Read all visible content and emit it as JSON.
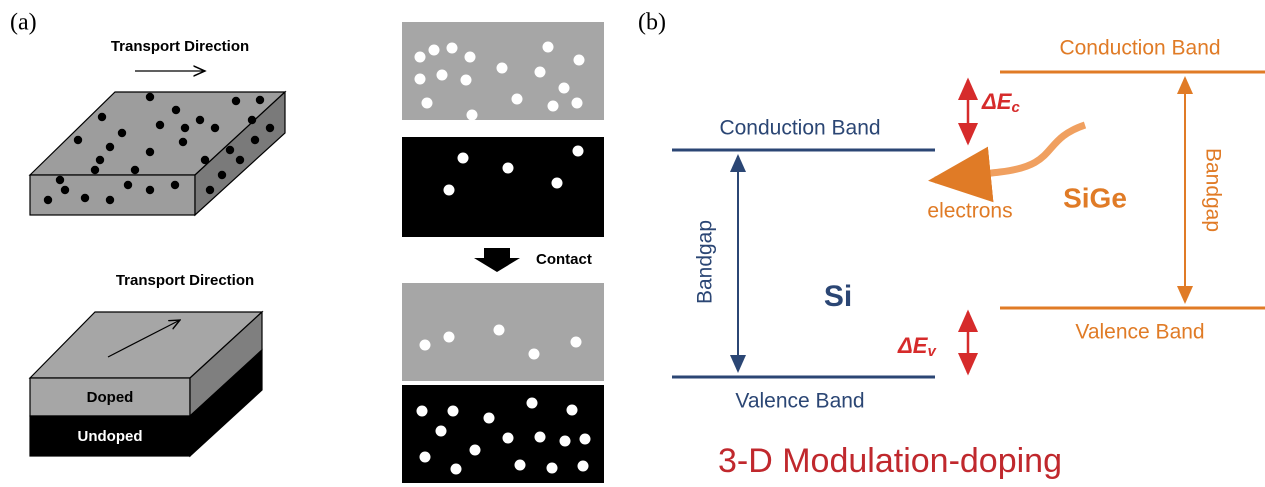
{
  "panel_a": {
    "label": "(a)",
    "top_slab_direction": "Transport Direction",
    "bottom_slab_direction": "Transport Direction",
    "doped": "Doped",
    "undoped": "Undoped",
    "contact": "Contact"
  },
  "panel_b": {
    "label": "(b)",
    "si": {
      "name": "Si",
      "conduction": "Conduction Band",
      "valence": "Valence Band",
      "bandgap": "Bandgap"
    },
    "sige": {
      "name": "SiGe",
      "conduction": "Conduction Band",
      "valence": "Valence Band",
      "bandgap": "Bandgap"
    },
    "electrons": "electrons",
    "delta_ec": {
      "main": "ΔE",
      "sub": "c"
    },
    "delta_ev": {
      "main": "ΔE",
      "sub": "v"
    },
    "caption": "3-D Modulation-doping"
  }
}
